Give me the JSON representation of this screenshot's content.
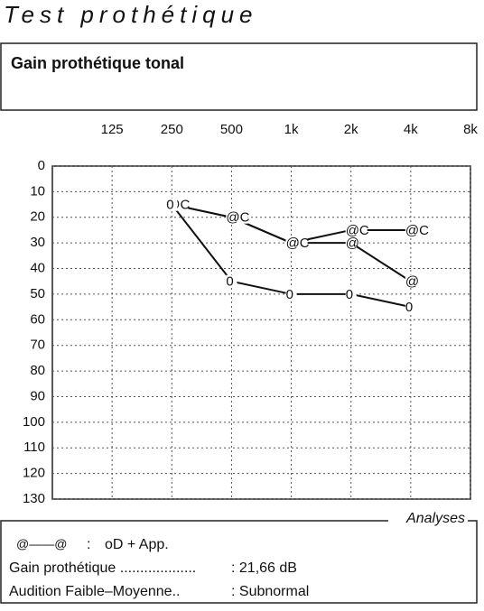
{
  "header": {
    "title": "Test prothétique",
    "subtitle": "Gain prothétique tonal"
  },
  "chart_data": {
    "type": "line",
    "xscale": "log",
    "y_inverted": true,
    "grid": true,
    "x": [
      250,
      500,
      1000,
      2000,
      4000
    ],
    "xlim": [
      62.5,
      8000
    ],
    "xticks": [
      125,
      250,
      500,
      {
        "value": 1000,
        "label": "1k"
      },
      {
        "value": 2000,
        "label": "2k"
      },
      {
        "value": 4000,
        "label": "4k"
      },
      {
        "value": 8000,
        "label": "8k"
      }
    ],
    "ylim": [
      0,
      130
    ],
    "yticks": [
      0,
      10,
      20,
      30,
      40,
      50,
      60,
      70,
      80,
      90,
      100,
      110,
      120,
      130
    ],
    "series": [
      {
        "marker": "@C",
        "color": "#111111",
        "values": [
          15,
          20,
          30,
          25,
          25
        ]
      },
      {
        "marker": "@",
        "color": "#111111",
        "values": [
          15,
          20,
          30,
          30,
          45
        ]
      },
      {
        "marker": "0",
        "color": "#111111",
        "values": [
          15,
          45,
          50,
          50,
          55
        ]
      }
    ]
  },
  "analyses": {
    "title": "Analyses",
    "rows": [
      [
        "@——@",
        ":",
        "oD + App."
      ],
      [
        "Gain prothétique ...................",
        ": 21,66 dB"
      ],
      [
        "Audition Faible–Moyenne..",
        ": Subnormal"
      ]
    ]
  }
}
